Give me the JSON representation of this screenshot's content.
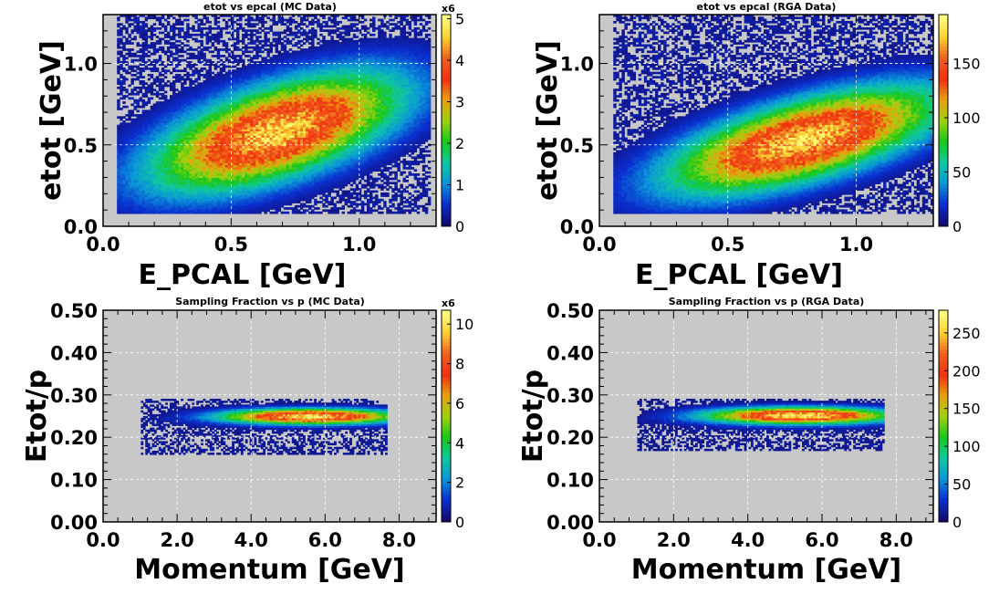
{
  "chart_data": [
    {
      "type": "heatmap",
      "title": "etot vs epcal (MC Data)",
      "xlabel": "E_PCAL  [GeV]",
      "ylabel": "etot [GeV]",
      "xlim": [
        0.0,
        1.3
      ],
      "ylim": [
        0.0,
        1.3
      ],
      "x_ticks": [
        "0.0",
        "0.5",
        "1.0"
      ],
      "y_ticks": [
        "0.0",
        "0.5",
        "1.0"
      ],
      "zlim": [
        0,
        5.1
      ],
      "z_ticks": [
        "0",
        "1",
        "2",
        "3",
        "4",
        "5"
      ],
      "z_multiplier": "x6",
      "grid": true,
      "density_model": {
        "kind": "tilted-gaussian",
        "center_x": 0.68,
        "center_y": 0.58,
        "sigma_along": 0.36,
        "sigma_across": 0.17,
        "tilt": 0.55,
        "peak": 4.9,
        "x_support": [
          0.05,
          1.28
        ],
        "y_support": [
          0.08,
          1.3
        ]
      }
    },
    {
      "type": "heatmap",
      "title": "etot vs epcal (RGA Data)",
      "xlabel": "E_PCAL  [GeV]",
      "ylabel": "etot [GeV]",
      "xlim": [
        0.0,
        1.3
      ],
      "ylim": [
        0.0,
        1.3
      ],
      "x_ticks": [
        "0.0",
        "0.5",
        "1.0"
      ],
      "y_ticks": [
        "0.0",
        "0.5",
        "1.0"
      ],
      "zlim": [
        0,
        195
      ],
      "z_ticks": [
        "0",
        "50",
        "100",
        "150"
      ],
      "z_multiplier": "",
      "grid": true,
      "density_model": {
        "kind": "tilted-gaussian",
        "center_x": 0.8,
        "center_y": 0.53,
        "sigma_along": 0.38,
        "sigma_across": 0.15,
        "tilt": 0.45,
        "peak": 190,
        "x_support": [
          0.05,
          1.3
        ],
        "y_support": [
          0.08,
          1.3
        ]
      }
    },
    {
      "type": "heatmap",
      "title": "Sampling Fraction vs p (MC Data)",
      "xlabel": "Momentum  [GeV]",
      "ylabel": "Etot/p",
      "xlim": [
        0.0,
        9.0
      ],
      "ylim": [
        0.0,
        0.5
      ],
      "x_ticks": [
        "0.0",
        "2.0",
        "4.0",
        "6.0",
        "8.0"
      ],
      "y_ticks": [
        "0.00",
        "0.10",
        "0.20",
        "0.30",
        "0.40",
        "0.50"
      ],
      "zlim": [
        0,
        10.7
      ],
      "z_ticks": [
        "0",
        "2",
        "4",
        "6",
        "8",
        "10"
      ],
      "z_multiplier": "x6",
      "grid": true,
      "density_model": {
        "kind": "band",
        "center_x": 5.6,
        "center_y": 0.25,
        "sigma_x": 1.6,
        "sigma_y": 0.012,
        "peak": 10.5,
        "x_support": [
          1.0,
          7.7
        ],
        "y_support": [
          0.16,
          0.29
        ]
      }
    },
    {
      "type": "heatmap",
      "title": "Sampling Fraction vs p (RGA Data)",
      "xlabel": "Momentum  [GeV]",
      "ylabel": "Etot/p",
      "xlim": [
        0.0,
        9.0
      ],
      "ylim": [
        0.0,
        0.5
      ],
      "x_ticks": [
        "0.0",
        "2.0",
        "4.0",
        "6.0",
        "8.0"
      ],
      "y_ticks": [
        "0.00",
        "0.10",
        "0.20",
        "0.30",
        "0.40",
        "0.50"
      ],
      "zlim": [
        0,
        280
      ],
      "z_ticks": [
        "0",
        "50",
        "100",
        "150",
        "200",
        "250"
      ],
      "z_multiplier": "",
      "grid": true,
      "density_model": {
        "kind": "band",
        "center_x": 5.4,
        "center_y": 0.252,
        "sigma_x": 1.7,
        "sigma_y": 0.013,
        "peak": 270,
        "x_support": [
          1.0,
          7.7
        ],
        "y_support": [
          0.17,
          0.29
        ]
      }
    }
  ],
  "colors": {
    "plot_background": "#c8c8c8",
    "grid": "#ffffff",
    "frame": "#000000",
    "palette": [
      "#140a6e",
      "#0a2fd0",
      "#0a96d8",
      "#10c8a0",
      "#18c818",
      "#a0d010",
      "#e8a010",
      "#f03010",
      "#f06020",
      "#fad030",
      "#ffff80"
    ]
  }
}
